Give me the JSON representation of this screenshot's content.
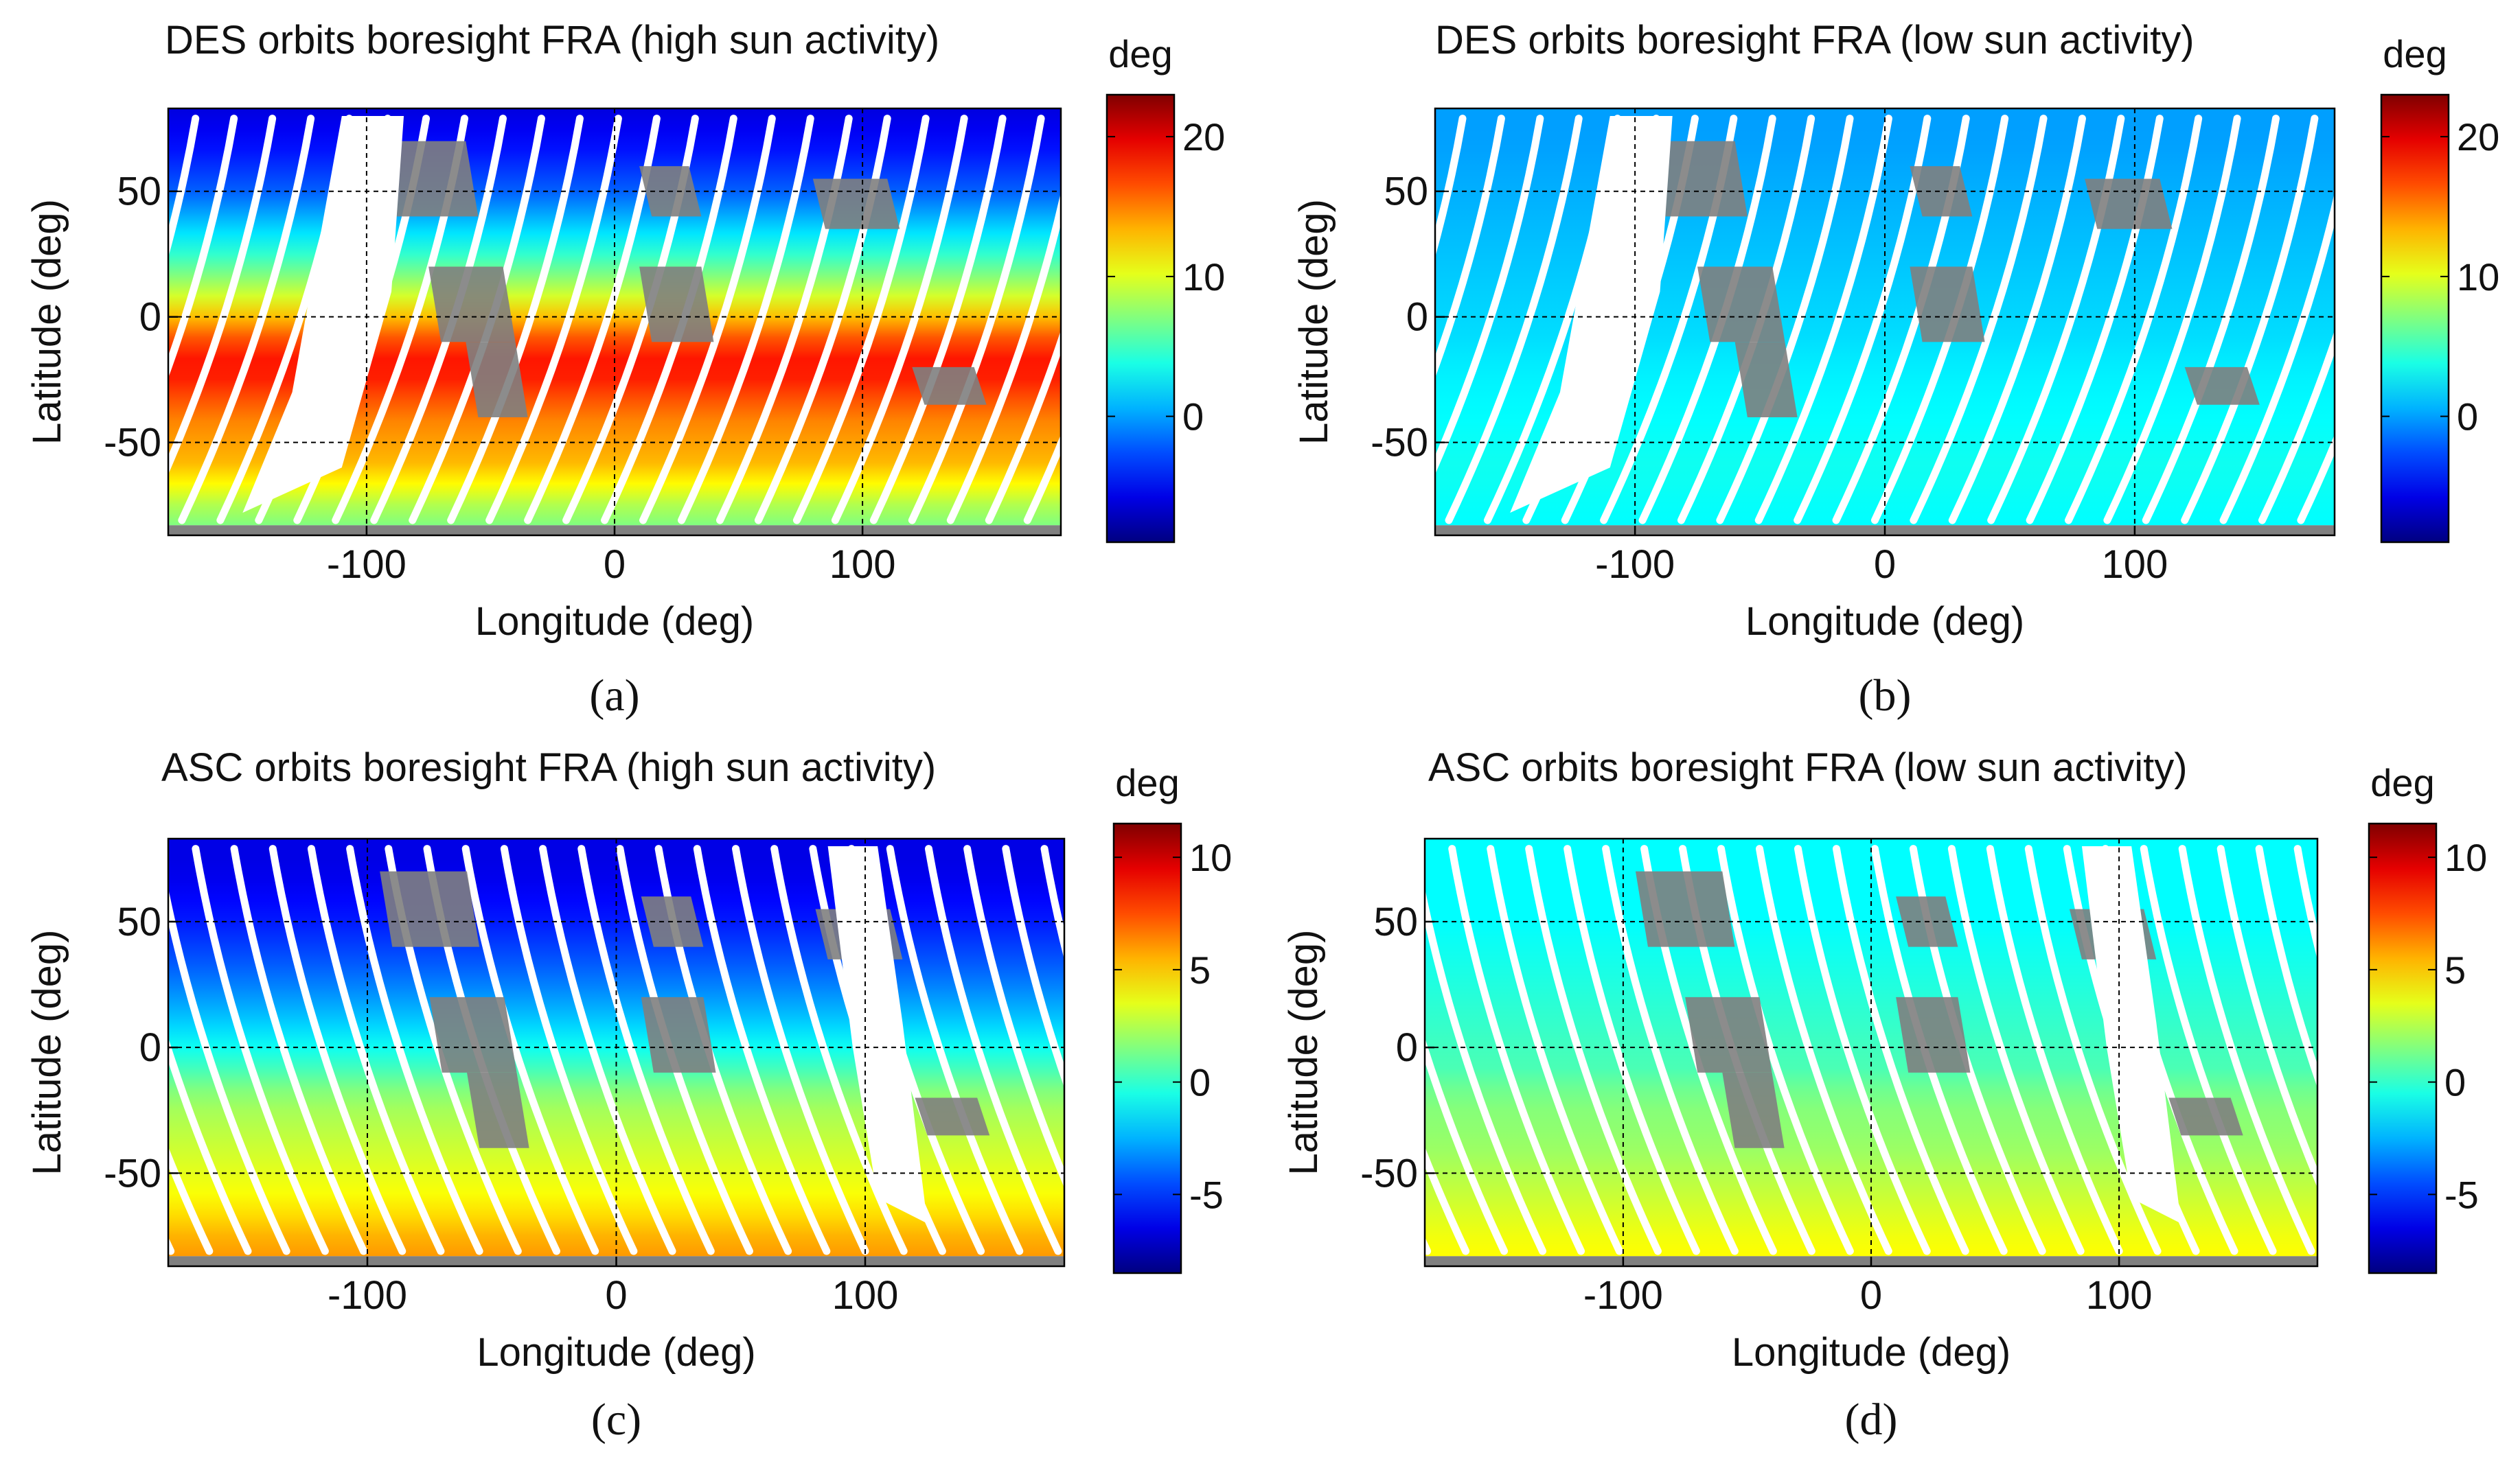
{
  "panels": [
    {
      "id": "a",
      "title": "DES orbits boresight FRA (high sun activity)",
      "xlabel": "Longitude (deg)",
      "ylabel": "Latitude (deg)",
      "caption": "(a)",
      "colorbar_label": "deg",
      "colorbar_ticks": [
        "20",
        "10",
        "0"
      ]
    },
    {
      "id": "b",
      "title": "DES orbits boresight FRA (low sun activity)",
      "xlabel": "Longitude (deg)",
      "ylabel": "Latitude (deg)",
      "caption": "(b)",
      "colorbar_label": "deg",
      "colorbar_ticks": [
        "20",
        "10",
        "0"
      ]
    },
    {
      "id": "c",
      "title": "ASC orbits boresight FRA (high sun activity)",
      "xlabel": "Longitude (deg)",
      "ylabel": "Latitude (deg)",
      "caption": "(c)",
      "colorbar_label": "deg",
      "colorbar_ticks": [
        "10",
        "5",
        "0",
        "-5"
      ]
    },
    {
      "id": "d",
      "title": "ASC orbits boresight FRA (low sun activity)",
      "xlabel": "Longitude (deg)",
      "ylabel": "Latitude (deg)",
      "caption": "(d)",
      "colorbar_label": "deg",
      "colorbar_ticks": [
        "10",
        "5",
        "0",
        "-5"
      ]
    }
  ],
  "chart_data": [
    {
      "type": "heatmap",
      "title": "DES orbits boresight FRA (high sun activity)",
      "xlabel": "Longitude (deg)",
      "ylabel": "Latitude (deg)",
      "xlim": [
        -180,
        180
      ],
      "ylim": [
        -87,
        83
      ],
      "xticks": [
        -100,
        0,
        100
      ],
      "yticks": [
        50,
        0,
        -50
      ],
      "grid": true,
      "orbit_direction": "descending",
      "colorbar": {
        "label": "deg",
        "range": [
          -9,
          23
        ],
        "ticks": [
          20,
          10,
          0
        ],
        "colormap": "jet"
      },
      "latitude_profile": {
        "latitude": [
          83,
          70,
          50,
          30,
          10,
          -10,
          -20,
          -40,
          -60,
          -80
        ],
        "value": [
          -6,
          -5,
          -2,
          3,
          9,
          17,
          19,
          15,
          13,
          7
        ]
      }
    },
    {
      "type": "heatmap",
      "title": "DES orbits boresight FRA (low sun activity)",
      "xlabel": "Longitude (deg)",
      "ylabel": "Latitude (deg)",
      "xlim": [
        -180,
        180
      ],
      "ylim": [
        -87,
        83
      ],
      "xticks": [
        -100,
        0,
        100
      ],
      "yticks": [
        50,
        0,
        -50
      ],
      "grid": true,
      "orbit_direction": "descending",
      "colorbar": {
        "label": "deg",
        "range": [
          -9,
          23
        ],
        "ticks": [
          20,
          10,
          0
        ],
        "colormap": "jet"
      },
      "latitude_profile": {
        "latitude": [
          83,
          70,
          50,
          30,
          10,
          -10,
          -20,
          -40,
          -60,
          -80
        ],
        "value": [
          0,
          0,
          0.5,
          1,
          1.5,
          2,
          2.5,
          3,
          3.5,
          3
        ]
      }
    },
    {
      "type": "heatmap",
      "title": "ASC orbits boresight FRA (high sun activity)",
      "xlabel": "Longitude (deg)",
      "ylabel": "Latitude (deg)",
      "xlim": [
        -180,
        180
      ],
      "ylim": [
        -87,
        83
      ],
      "xticks": [
        -100,
        0,
        100
      ],
      "yticks": [
        50,
        0,
        -50
      ],
      "grid": true,
      "orbit_direction": "ascending",
      "colorbar": {
        "label": "deg",
        "range": [
          -8.5,
          11.5
        ],
        "ticks": [
          10,
          5,
          0,
          -5
        ],
        "colormap": "jet"
      },
      "latitude_profile": {
        "latitude": [
          83,
          70,
          50,
          30,
          10,
          -10,
          -20,
          -40,
          -60,
          -80
        ],
        "value": [
          -6.5,
          -6.5,
          -5.5,
          -4,
          -2,
          0.5,
          2,
          3,
          4,
          6
        ]
      }
    },
    {
      "type": "heatmap",
      "title": "ASC orbits boresight FRA (low sun activity)",
      "xlabel": "Longitude (deg)",
      "ylabel": "Latitude (deg)",
      "xlim": [
        -180,
        180
      ],
      "ylim": [
        -87,
        83
      ],
      "xticks": [
        -100,
        0,
        100
      ],
      "yticks": [
        50,
        0,
        -50
      ],
      "grid": true,
      "orbit_direction": "ascending",
      "colorbar": {
        "label": "deg",
        "range": [
          -8.5,
          11.5
        ],
        "ticks": [
          10,
          5,
          0,
          -5
        ],
        "colormap": "jet"
      },
      "latitude_profile": {
        "latitude": [
          83,
          70,
          50,
          30,
          10,
          -10,
          -20,
          -40,
          -60,
          -80
        ],
        "value": [
          -1,
          -1,
          -1,
          -0.5,
          0,
          0.5,
          1.5,
          2,
          3,
          4
        ]
      }
    }
  ]
}
